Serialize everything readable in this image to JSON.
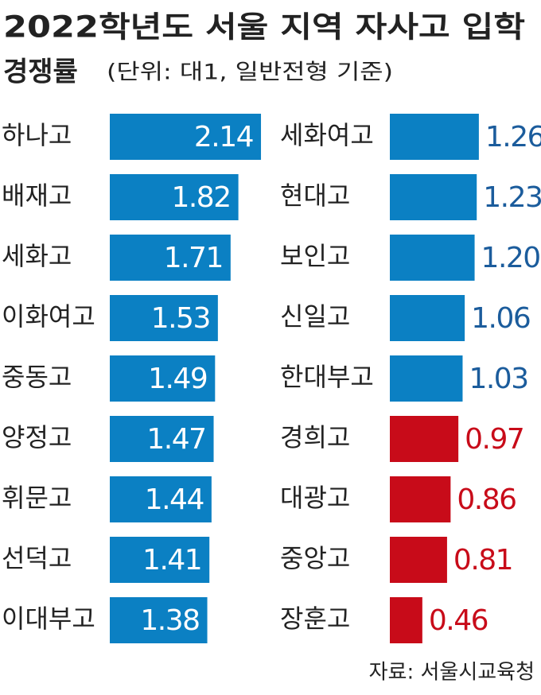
{
  "title": "2022학년도 서울 지역 자사고 입학",
  "title_line2": "경쟁률",
  "subtitle": "(단위: 대1, 일반전형 기준)",
  "source": "자료: 서울시교육청",
  "chart_data": [
    {
      "type": "bar",
      "orientation": "horizontal",
      "label_position": "inside",
      "categories": [
        "하나고",
        "배재고",
        "세화고",
        "이화여고",
        "중동고",
        "양정고",
        "휘문고",
        "선덕고",
        "이대부고"
      ],
      "values": [
        2.14,
        1.82,
        1.71,
        1.53,
        1.49,
        1.47,
        1.44,
        1.41,
        1.38
      ],
      "value_labels": [
        "2.14",
        "1.82",
        "1.71",
        "1.53",
        "1.49",
        "1.47",
        "1.44",
        "1.41",
        "1.38"
      ],
      "colors": [
        "#0b80c3",
        "#0b80c3",
        "#0b80c3",
        "#0b80c3",
        "#0b80c3",
        "#0b80c3",
        "#0b80c3",
        "#0b80c3",
        "#0b80c3"
      ],
      "label_colors": [
        "#ffffff",
        "#ffffff",
        "#ffffff",
        "#ffffff",
        "#ffffff",
        "#ffffff",
        "#ffffff",
        "#ffffff",
        "#ffffff"
      ]
    },
    {
      "type": "bar",
      "orientation": "horizontal",
      "label_position": "outside",
      "categories": [
        "세화여고",
        "현대고",
        "보인고",
        "신일고",
        "한대부고",
        "경희고",
        "대광고",
        "중앙고",
        "장훈고"
      ],
      "values": [
        1.26,
        1.23,
        1.2,
        1.06,
        1.03,
        0.97,
        0.86,
        0.81,
        0.46
      ],
      "value_labels": [
        "1.26",
        "1.23",
        "1.20",
        "1.06",
        "1.03",
        "0.97",
        "0.86",
        "0.81",
        "0.46"
      ],
      "colors": [
        "#0b80c3",
        "#0b80c3",
        "#0b80c3",
        "#0b80c3",
        "#0b80c3",
        "#c80b19",
        "#c80b19",
        "#c80b19",
        "#c80b19"
      ],
      "label_colors": [
        "#1b5c9c",
        "#1b5c9c",
        "#1b5c9c",
        "#1b5c9c",
        "#1b5c9c",
        "#c80b19",
        "#c80b19",
        "#c80b19",
        "#c80b19"
      ]
    }
  ]
}
